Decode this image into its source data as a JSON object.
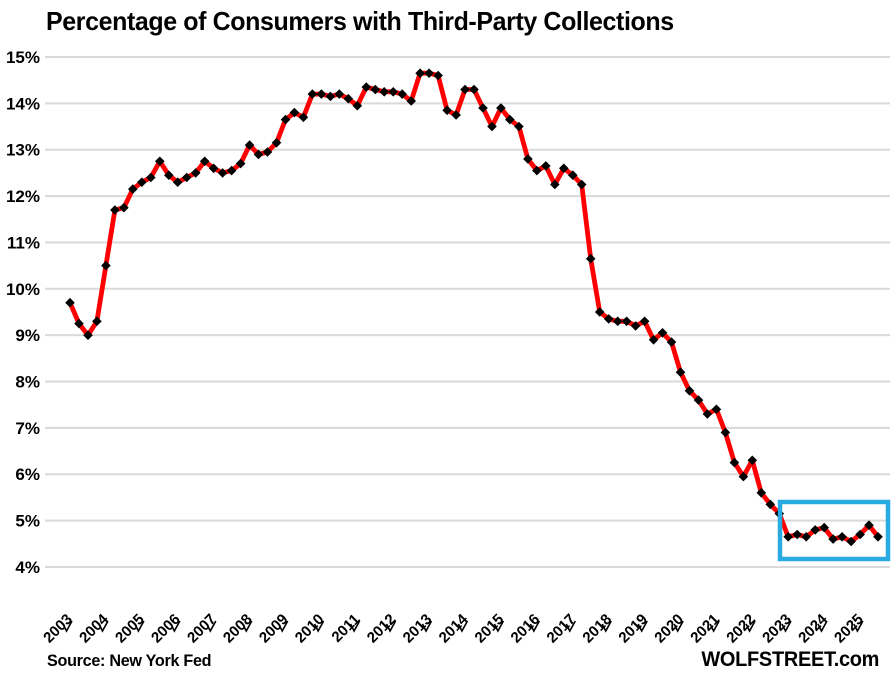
{
  "title": "Percentage of Consumers with Third-Party Collections",
  "source_note": "Source: New York Fed",
  "branding": "WOLFSTREET.com",
  "colors": {
    "background": "#ffffff",
    "text": "#000000",
    "gridline": "#d9d9d9",
    "line": "#ff0000",
    "marker": "#000000",
    "highlight_box": "#29abe2"
  },
  "chart_data": {
    "type": "line",
    "title": "Percentage of Consumers with Third-Party Collections",
    "xlabel": "",
    "ylabel": "",
    "ylim": [
      4,
      15
    ],
    "y_tick_step": 1,
    "y_tick_labels": [
      "15%",
      "14%",
      "13%",
      "12%",
      "11%",
      "10%",
      "9%",
      "8%",
      "7%",
      "6%",
      "5%",
      "4%"
    ],
    "x_tick_labels": [
      "2003",
      "2004",
      "2005",
      "2006",
      "2007",
      "2008",
      "2009",
      "2010",
      "2011",
      "2012",
      "2013",
      "2014",
      "2015",
      "2016",
      "2017",
      "2018",
      "2019",
      "2020",
      "2021",
      "2022",
      "2023",
      "2024",
      "2025"
    ],
    "frequency": "quarterly",
    "x_start": "2003 Q1",
    "x_end": "2025 Q3",
    "grid": true,
    "legend": false,
    "series": [
      {
        "name": "Percent of consumers with third-party collections",
        "unit": "%",
        "values": [
          9.7,
          9.25,
          9.0,
          9.3,
          10.5,
          11.7,
          11.75,
          12.15,
          12.3,
          12.4,
          12.75,
          12.45,
          12.3,
          12.4,
          12.5,
          12.75,
          12.6,
          12.5,
          12.55,
          12.7,
          13.1,
          12.9,
          12.95,
          13.15,
          13.65,
          13.8,
          13.7,
          14.2,
          14.2,
          14.15,
          14.2,
          14.1,
          13.95,
          14.35,
          14.3,
          14.25,
          14.25,
          14.2,
          14.05,
          14.65,
          14.65,
          14.6,
          13.85,
          13.75,
          14.3,
          14.3,
          13.9,
          13.5,
          13.9,
          13.65,
          13.5,
          12.8,
          12.55,
          12.65,
          12.25,
          12.6,
          12.45,
          12.25,
          10.65,
          9.5,
          9.35,
          9.3,
          9.3,
          9.2,
          9.3,
          8.9,
          9.05,
          8.85,
          8.2,
          7.8,
          7.6,
          7.3,
          7.4,
          6.9,
          6.25,
          5.95,
          6.3,
          5.6,
          5.35,
          5.15,
          4.65,
          4.7,
          4.65,
          4.8,
          4.85,
          4.6,
          4.65,
          4.55,
          4.7,
          4.9,
          4.65
        ]
      }
    ],
    "annotation_box": {
      "from": "2023 Q1",
      "to": "2025 Q3",
      "color": "#29abe2"
    }
  }
}
